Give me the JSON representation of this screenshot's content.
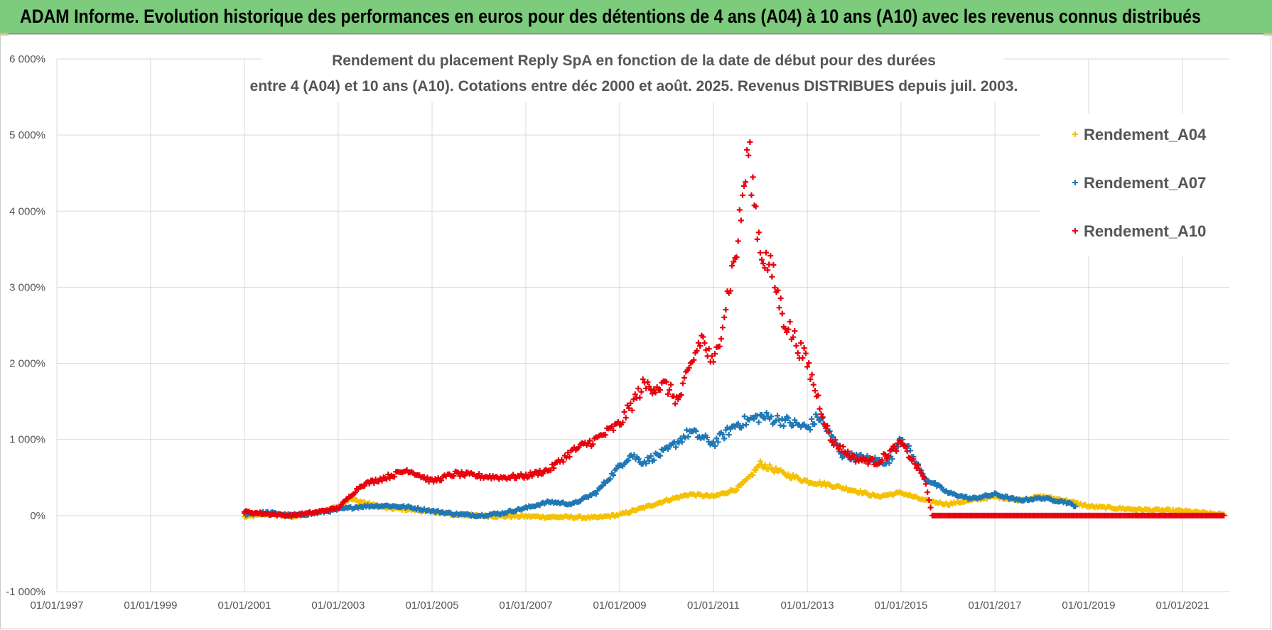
{
  "banner": {
    "title": "ADAM Informe. Evolution historique des performances en euros pour des détentions de 4 ans (A04) à 10 ans (A10) avec les revenus connus distribués",
    "background": "#7dcb7d"
  },
  "chart_data": {
    "type": "scatter",
    "title_line1": "Rendement du placement Reply SpA en fonction de la date de début pour des durées",
    "title_line2": "entre 4 (A04) et 10 ans (A10). Cotations entre déc 2000 et août. 2025. Revenus DISTRIBUES depuis juil. 2003.",
    "xlabel": "",
    "ylabel": "",
    "marker": "+",
    "grid": true,
    "legend_position": "right",
    "xlim": [
      "1997-01-01",
      "2022-01-01"
    ],
    "ylim": [
      -1000,
      6000
    ],
    "x_ticks": [
      "01/01/1997",
      "01/01/1999",
      "01/01/2001",
      "01/01/2003",
      "01/01/2005",
      "01/01/2007",
      "01/01/2009",
      "01/01/2011",
      "01/01/2013",
      "01/01/2015",
      "01/01/2017",
      "01/01/2019",
      "01/01/2021"
    ],
    "y_ticks": [
      "-1 000%",
      "0%",
      "1 000%",
      "2 000%",
      "3 000%",
      "4 000%",
      "5 000%",
      "6 000%"
    ],
    "series": [
      {
        "name": "Rendement_A04",
        "color": "#f5c000",
        "x": [
          "2001-01-01",
          "2001-07-01",
          "2002-01-01",
          "2002-07-01",
          "2003-01-01",
          "2003-04-01",
          "2003-07-01",
          "2004-01-01",
          "2004-07-01",
          "2005-01-01",
          "2005-07-01",
          "2006-01-01",
          "2006-07-01",
          "2007-01-01",
          "2007-07-01",
          "2008-01-01",
          "2008-07-01",
          "2009-01-01",
          "2009-07-01",
          "2010-01-01",
          "2010-07-01",
          "2011-01-01",
          "2011-07-01",
          "2011-10-01",
          "2012-01-01",
          "2012-07-01",
          "2013-01-01",
          "2013-07-01",
          "2014-01-01",
          "2014-07-01",
          "2015-01-01",
          "2015-07-01",
          "2016-01-01",
          "2016-07-01",
          "2017-01-01",
          "2017-07-01",
          "2018-01-01",
          "2018-07-01",
          "2019-01-01",
          "2019-07-01",
          "2020-01-01",
          "2020-07-01",
          "2021-01-01",
          "2021-07-01",
          "2021-12-01"
        ],
        "y": [
          -20,
          20,
          -10,
          30,
          120,
          220,
          180,
          100,
          80,
          50,
          10,
          0,
          -10,
          -10,
          -20,
          -20,
          -30,
          10,
          100,
          200,
          280,
          250,
          350,
          480,
          680,
          550,
          450,
          400,
          330,
          250,
          300,
          200,
          150,
          200,
          250,
          200,
          250,
          200,
          120,
          100,
          80,
          70,
          60,
          30,
          10
        ]
      },
      {
        "name": "Rendement_A07",
        "color": "#1f77b4",
        "x": [
          "2001-01-01",
          "2001-07-01",
          "2002-01-01",
          "2002-07-01",
          "2003-01-01",
          "2003-07-01",
          "2004-01-01",
          "2004-07-01",
          "2005-01-01",
          "2005-07-01",
          "2006-01-01",
          "2006-07-01",
          "2007-01-01",
          "2007-07-01",
          "2008-01-01",
          "2008-07-01",
          "2009-01-01",
          "2009-04-01",
          "2009-07-01",
          "2010-01-01",
          "2010-07-01",
          "2011-01-01",
          "2011-07-01",
          "2012-01-01",
          "2012-07-01",
          "2013-01-01",
          "2013-04-01",
          "2013-10-01",
          "2014-04-01",
          "2014-10-01",
          "2015-01-01",
          "2015-07-01",
          "2016-01-01",
          "2016-07-01",
          "2017-01-01",
          "2017-07-01",
          "2018-01-01",
          "2018-07-01",
          "2018-10-01"
        ],
        "y": [
          20,
          40,
          0,
          30,
          80,
          120,
          130,
          110,
          60,
          20,
          0,
          30,
          100,
          180,
          150,
          300,
          650,
          800,
          700,
          850,
          1100,
          950,
          1200,
          1300,
          1250,
          1150,
          1300,
          800,
          750,
          700,
          1050,
          500,
          300,
          220,
          280,
          200,
          230,
          180,
          120
        ]
      },
      {
        "name": "Rendement_A10",
        "color": "#e8000b",
        "x": [
          "2001-01-01",
          "2001-07-01",
          "2002-01-01",
          "2002-07-01",
          "2003-01-01",
          "2003-07-01",
          "2004-01-01",
          "2004-07-01",
          "2005-01-01",
          "2005-07-01",
          "2006-01-01",
          "2006-07-01",
          "2007-01-01",
          "2007-07-01",
          "2008-01-01",
          "2008-07-01",
          "2009-01-01",
          "2009-07-01",
          "2010-01-01",
          "2010-04-01",
          "2010-10-01",
          "2011-01-01",
          "2011-07-01",
          "2011-10-01",
          "2012-01-01",
          "2012-04-01",
          "2012-07-01",
          "2013-01-01",
          "2013-07-01",
          "2014-01-01",
          "2014-07-01",
          "2015-01-01",
          "2015-07-01",
          "2015-09-01",
          "2016-01-01",
          "2017-01-01",
          "2018-01-01",
          "2019-01-01",
          "2020-01-01",
          "2021-01-01",
          "2021-12-01"
        ],
        "y": [
          50,
          20,
          0,
          40,
          100,
          400,
          500,
          600,
          450,
          550,
          520,
          500,
          520,
          600,
          850,
          1000,
          1200,
          1700,
          1700,
          1500,
          2350,
          1950,
          3500,
          4800,
          3500,
          3200,
          2600,
          2000,
          1000,
          750,
          700,
          950,
          500,
          0,
          0,
          0,
          0,
          0,
          0,
          0,
          0
        ]
      }
    ]
  }
}
